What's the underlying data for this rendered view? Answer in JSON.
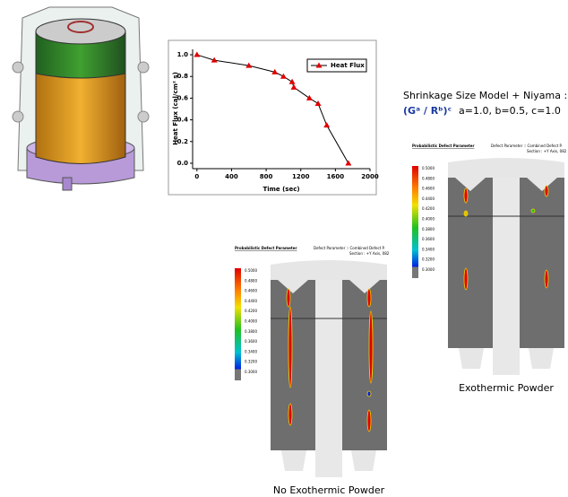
{
  "chart_data": {
    "type": "line",
    "x_label": "Time (sec)",
    "y_label": "Heat Flux (cal/cm² s)",
    "x": [
      0,
      200,
      600,
      900,
      1000,
      1100,
      1120,
      1300,
      1400,
      1500,
      1750
    ],
    "series": [
      {
        "name": "Heat Flux",
        "color": "#e00000",
        "values": [
          1.0,
          0.95,
          0.9,
          0.84,
          0.8,
          0.75,
          0.7,
          0.6,
          0.55,
          0.35,
          0.0
        ]
      }
    ],
    "xlim": [
      -50,
      2000
    ],
    "xticks": [
      0,
      400,
      800,
      1200,
      1600,
      2000
    ],
    "ylim": [
      -0.05,
      1.05
    ],
    "yticks": [
      {
        "value": 0,
        "label": "0.0"
      },
      0.2,
      0.4,
      0.6,
      0.8,
      {
        "value": 1,
        "label": "1.0"
      }
    ],
    "legend": "upper right"
  },
  "model": {
    "title": "Shrinkage Size Model + Niyama :",
    "formula": "(Gᵃ / Rᵇ)ᶜ",
    "params": "a=1.0, b=0.5, c=1.0"
  },
  "panels": [
    {
      "title": "Probabilistic Defect Parameter",
      "parameter": "Defect Parameter :: Combined Defect P.",
      "section": "Section : +Y Axis, 082",
      "scale": [
        "0.5000",
        "0.4800",
        "0.4600",
        "0.4400",
        "0.4200",
        "0.4000",
        "0.3800",
        "0.3600",
        "0.3400",
        "0.3200",
        "0.3000"
      ],
      "caption": "Exothermic Powder"
    },
    {
      "title": "Probabilistic Defect Parameter",
      "parameter": "Defect Parameter :: Combined Defect P.",
      "section": "Section : +Y Axis, 082",
      "scale": [
        "0.5000",
        "0.4800",
        "0.4600",
        "0.4400",
        "0.4200",
        "0.4000",
        "0.3800",
        "0.3600",
        "0.3400",
        "0.3200",
        "0.3000"
      ],
      "caption": "No Exothermic Powder"
    }
  ]
}
